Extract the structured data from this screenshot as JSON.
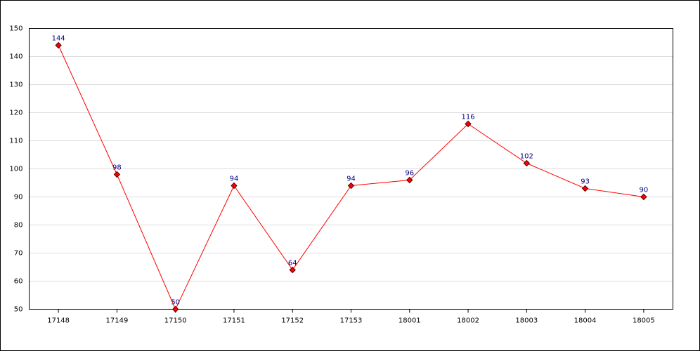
{
  "chart_data": {
    "type": "line",
    "categories": [
      "17148",
      "17149",
      "17150",
      "17151",
      "17152",
      "17153",
      "18001",
      "18002",
      "18003",
      "18004",
      "18005"
    ],
    "values": [
      144,
      98,
      50,
      94,
      64,
      94,
      96,
      116,
      102,
      93,
      90
    ],
    "color": "#ff0000",
    "ylim": [
      50,
      150
    ],
    "yticks": [
      50,
      60,
      70,
      80,
      90,
      100,
      110,
      120,
      130,
      140,
      150
    ],
    "grid": true
  }
}
